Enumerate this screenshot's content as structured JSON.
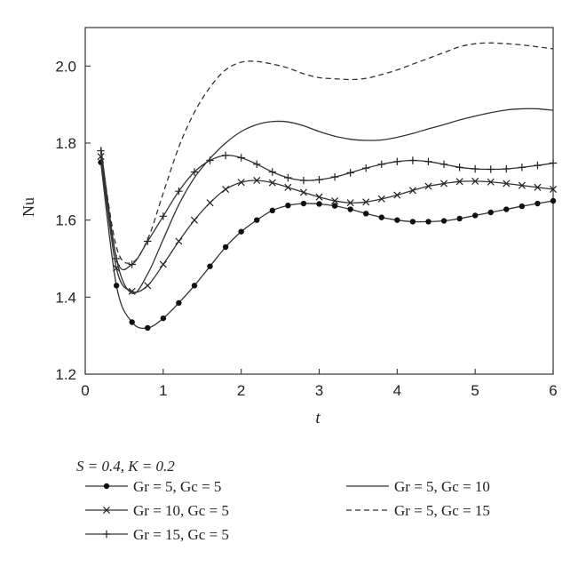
{
  "chart_data": {
    "type": "line",
    "xlabel": "t",
    "ylabel": "Nu",
    "xlim": [
      0,
      6
    ],
    "ylim": [
      1.2,
      2.1
    ],
    "xticks": [
      0,
      1,
      2,
      3,
      4,
      5,
      6
    ],
    "yticks": [
      1.2,
      1.4,
      1.6,
      1.8,
      2.0
    ],
    "xtick_labels": [
      "0",
      "1",
      "2",
      "3",
      "4",
      "5",
      "6"
    ],
    "ytick_labels": [
      "1.2",
      "1.4",
      "1.6",
      "1.8",
      "2.0"
    ],
    "grid": false,
    "legend_placement": "bottom",
    "legend_header": "S = 0.4, K = 0.2",
    "series": [
      {
        "name": "Gr = 5, Gc = 5",
        "marker": "dot",
        "dash": "solid",
        "x": [
          0.2,
          0.4,
          0.6,
          0.8,
          1.0,
          1.2,
          1.4,
          1.6,
          1.8,
          2.0,
          2.2,
          2.4,
          2.6,
          2.8,
          3.0,
          3.2,
          3.4,
          3.6,
          3.8,
          4.0,
          4.2,
          4.4,
          4.6,
          4.8,
          5.0,
          5.2,
          5.4,
          5.6,
          5.8,
          6.0
        ],
        "y": [
          1.75,
          1.43,
          1.335,
          1.32,
          1.345,
          1.385,
          1.43,
          1.48,
          1.53,
          1.57,
          1.6,
          1.625,
          1.638,
          1.643,
          1.642,
          1.637,
          1.628,
          1.617,
          1.607,
          1.6,
          1.596,
          1.596,
          1.598,
          1.604,
          1.612,
          1.62,
          1.628,
          1.636,
          1.643,
          1.65
        ]
      },
      {
        "name": "Gr = 10, Gc = 5",
        "marker": "x",
        "dash": "solid",
        "x": [
          0.2,
          0.4,
          0.6,
          0.8,
          1.0,
          1.2,
          1.4,
          1.6,
          1.8,
          2.0,
          2.2,
          2.4,
          2.6,
          2.8,
          3.0,
          3.2,
          3.4,
          3.6,
          3.8,
          4.0,
          4.2,
          4.4,
          4.6,
          4.8,
          5.0,
          5.2,
          5.4,
          5.6,
          5.8,
          6.0
        ],
        "y": [
          1.765,
          1.475,
          1.415,
          1.43,
          1.485,
          1.545,
          1.6,
          1.645,
          1.68,
          1.698,
          1.703,
          1.697,
          1.685,
          1.672,
          1.66,
          1.65,
          1.645,
          1.647,
          1.655,
          1.665,
          1.677,
          1.688,
          1.695,
          1.7,
          1.701,
          1.699,
          1.695,
          1.69,
          1.685,
          1.68
        ]
      },
      {
        "name": "Gr = 15, Gc = 5",
        "marker": "plus",
        "dash": "solid",
        "x": [
          0.2,
          0.4,
          0.6,
          0.8,
          1.0,
          1.2,
          1.4,
          1.6,
          1.8,
          2.0,
          2.2,
          2.4,
          2.6,
          2.8,
          3.0,
          3.2,
          3.4,
          3.6,
          3.8,
          4.0,
          4.2,
          4.4,
          4.6,
          4.8,
          5.0,
          5.2,
          5.4,
          5.6,
          5.8,
          6.0
        ],
        "y": [
          1.78,
          1.5,
          1.485,
          1.545,
          1.61,
          1.675,
          1.725,
          1.755,
          1.768,
          1.762,
          1.745,
          1.725,
          1.71,
          1.703,
          1.705,
          1.712,
          1.723,
          1.735,
          1.745,
          1.752,
          1.755,
          1.752,
          1.745,
          1.737,
          1.733,
          1.732,
          1.733,
          1.737,
          1.742,
          1.748
        ]
      },
      {
        "name": "Gr = 5, Gc = 10",
        "marker": "none",
        "dash": "solid",
        "x": [
          0.2,
          0.4,
          0.6,
          0.8,
          1.0,
          1.2,
          1.4,
          1.6,
          1.8,
          2.0,
          2.2,
          2.4,
          2.6,
          2.8,
          3.0,
          3.2,
          3.4,
          3.6,
          3.8,
          4.0,
          4.2,
          4.4,
          4.6,
          4.8,
          5.0,
          5.2,
          5.4,
          5.6,
          5.8,
          6.0
        ],
        "y": [
          1.79,
          1.5,
          1.41,
          1.46,
          1.55,
          1.64,
          1.71,
          1.76,
          1.8,
          1.83,
          1.848,
          1.856,
          1.855,
          1.845,
          1.83,
          1.818,
          1.81,
          1.807,
          1.808,
          1.815,
          1.825,
          1.837,
          1.848,
          1.86,
          1.87,
          1.879,
          1.886,
          1.889,
          1.889,
          1.885
        ]
      },
      {
        "name": "Gr = 5, Gc = 15",
        "marker": "none",
        "dash": "dashed",
        "x": [
          0.2,
          0.4,
          0.6,
          0.8,
          1.0,
          1.2,
          1.4,
          1.6,
          1.8,
          2.0,
          2.2,
          2.4,
          2.6,
          2.8,
          3.0,
          3.2,
          3.4,
          3.6,
          3.8,
          4.0,
          4.2,
          4.4,
          4.6,
          4.8,
          5.0,
          5.2,
          5.4,
          5.6,
          5.8,
          6.0
        ],
        "y": [
          1.78,
          1.53,
          1.49,
          1.55,
          1.67,
          1.79,
          1.88,
          1.945,
          1.99,
          2.01,
          2.012,
          2.005,
          1.995,
          1.98,
          1.97,
          1.967,
          1.965,
          1.968,
          1.978,
          1.99,
          2.005,
          2.02,
          2.035,
          2.05,
          2.058,
          2.06,
          2.058,
          2.055,
          2.05,
          2.045
        ]
      }
    ]
  }
}
